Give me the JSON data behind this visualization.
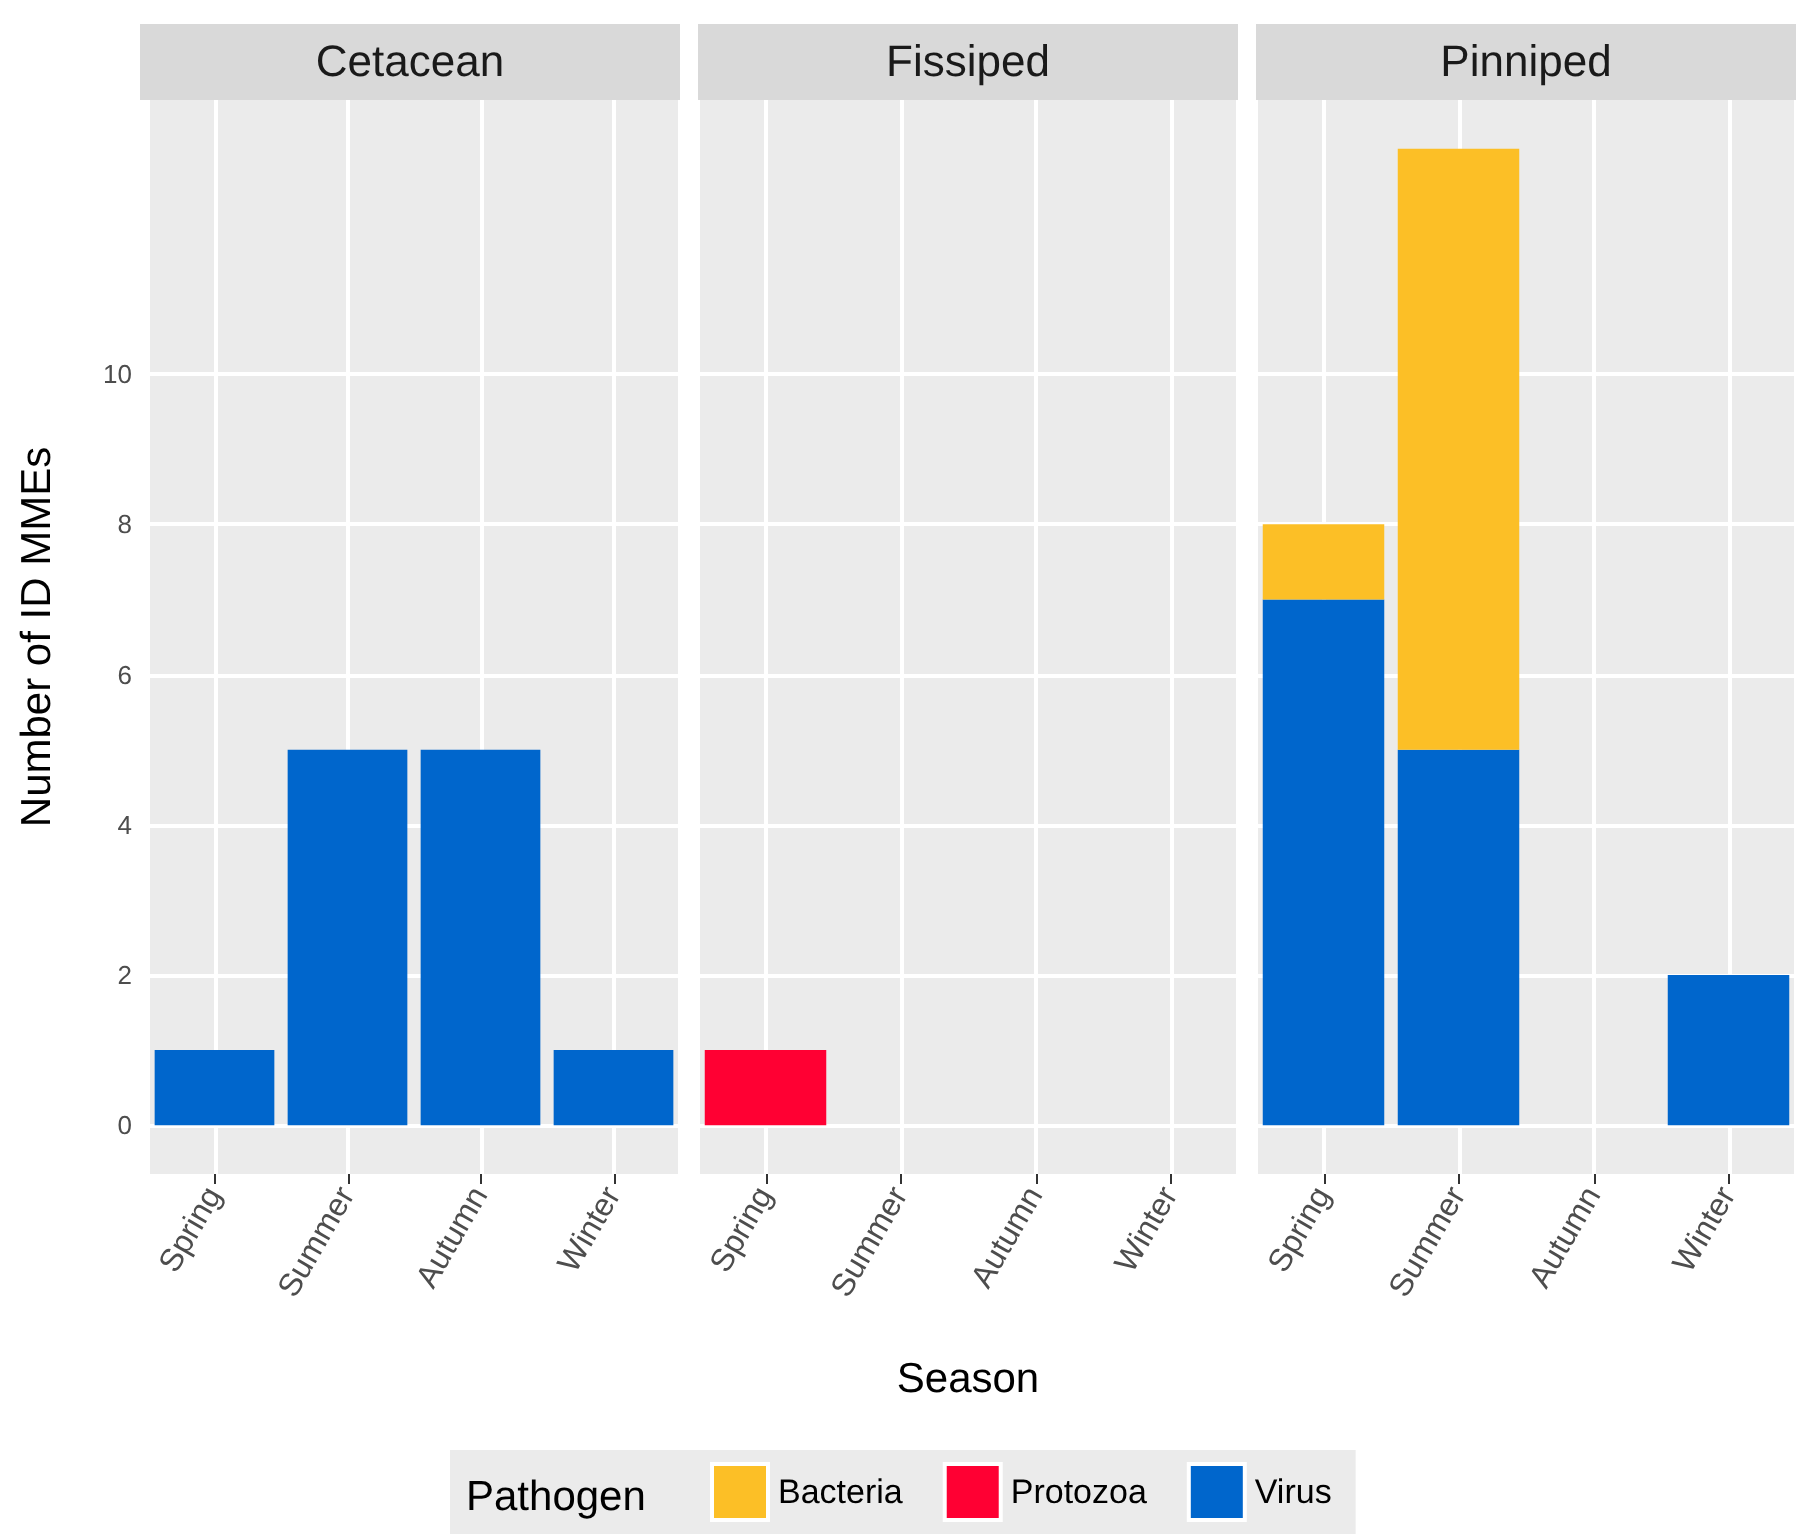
{
  "chart_data": [
    {
      "type": "bar",
      "title": "Cetacean",
      "ylabel": "Number of ID MMEs",
      "categories": [
        "Spring",
        "Summer",
        "Autumn",
        "Winter"
      ],
      "stacked": true,
      "series": [
        {
          "color": "#0066cc",
          "values": [
            1,
            5,
            5,
            1
          ]
        }
      ],
      "ylim": [
        -0.65,
        13.65
      ],
      "yticks": [
        0,
        2,
        4,
        6,
        8,
        10
      ],
      "grid": true,
      "legend": false
    },
    {
      "type": "bar",
      "title": "Fissiped",
      "xlabel": "Season",
      "legend_title": "Pathogen",
      "categories": [
        "Spring",
        "Summer",
        "Autumn",
        "Winter"
      ],
      "stacked": true,
      "series": [
        {
          "name": "Virus",
          "color": "#0066cc",
          "values": [
            null,
            null,
            null,
            null
          ]
        },
        {
          "name": "Protozoa",
          "color": "#ff0033",
          "values": [
            1,
            null,
            null,
            null
          ]
        },
        {
          "name": "Bacteria",
          "color": "#fcbf26",
          "values": [
            null,
            null,
            null,
            null
          ]
        }
      ],
      "ylim": [
        -0.65,
        13.65
      ],
      "yticks": [
        0,
        2,
        4,
        6,
        8,
        10
      ],
      "grid": true,
      "legend": "bottom",
      "tick_labels": "x"
    },
    {
      "type": "bar",
      "title": "Pinniped",
      "categories": [
        "Spring",
        "Summer",
        "Autumn",
        "Winter"
      ],
      "stacked": true,
      "series": [
        {
          "color": "#0066cc",
          "values": [
            7,
            5,
            null,
            2
          ]
        },
        {
          "color": "#fcbf26",
          "values": [
            1,
            8,
            null,
            null
          ]
        }
      ],
      "ylim": [
        -0.65,
        13.65
      ],
      "yticks": [
        0,
        2,
        4,
        6,
        8,
        10
      ],
      "grid": true,
      "legend": false,
      "tick_labels": "x"
    }
  ]
}
